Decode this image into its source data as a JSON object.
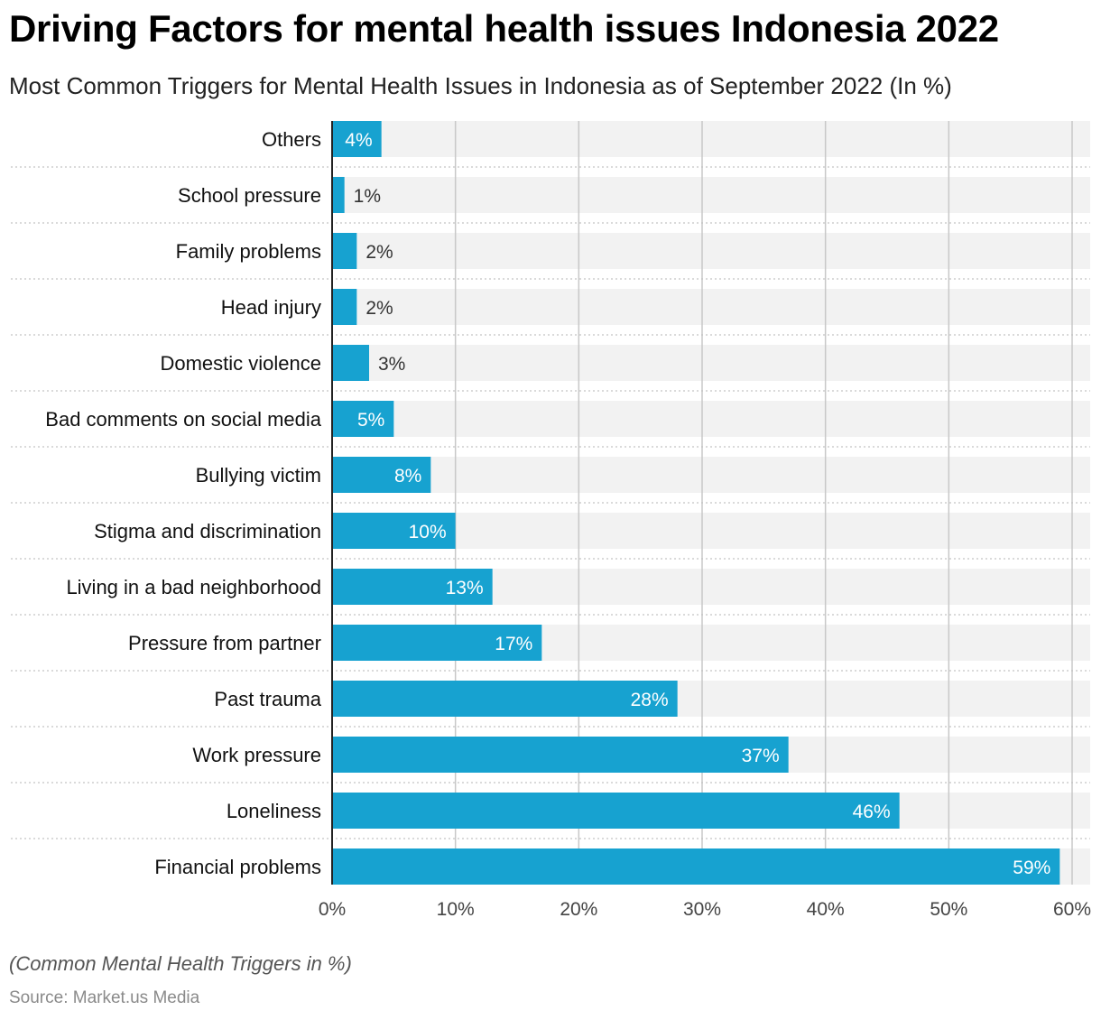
{
  "header": {
    "title": "Driving Factors for mental health issues Indonesia 2022",
    "subtitle": "Most Common Triggers for Mental Health Issues in Indonesia as of September 2022 (In %)"
  },
  "footer": {
    "footnote": "(Common Mental Health Triggers in %)",
    "source": "Source: Market.us Media"
  },
  "colors": {
    "bar": "#17a2d0",
    "track": "#f2f2f2",
    "grid": "#c8c8c8",
    "label_inside": "#ffffff",
    "label_outside": "#333333"
  },
  "chart_data": {
    "type": "bar",
    "orientation": "horizontal",
    "title": "Driving Factors for mental health issues Indonesia 2022",
    "subtitle": "Most Common Triggers for Mental Health Issues in Indonesia as of September 2022 (In %)",
    "xlabel": "",
    "ylabel": "",
    "xlim": [
      0,
      60
    ],
    "ticks": [
      "0%",
      "10%",
      "20%",
      "30%",
      "40%",
      "50%",
      "60%"
    ],
    "tick_values": [
      0,
      10,
      20,
      30,
      40,
      50,
      60
    ],
    "categories": [
      "Others",
      "School pressure",
      "Family problems",
      "Head injury",
      "Domestic violence",
      "Bad comments on social media",
      "Bullying victim",
      "Stigma and discrimination",
      "Living in a bad neighborhood",
      "Pressure from partner",
      "Past trauma",
      "Work pressure",
      "Loneliness",
      "Financial problems"
    ],
    "values": [
      4,
      1,
      2,
      2,
      3,
      5,
      8,
      10,
      13,
      17,
      28,
      37,
      46,
      59
    ],
    "value_labels": [
      "4%",
      "1%",
      "2%",
      "2%",
      "3%",
      "5%",
      "8%",
      "10%",
      "13%",
      "17%",
      "28%",
      "37%",
      "46%",
      "59%"
    ]
  }
}
